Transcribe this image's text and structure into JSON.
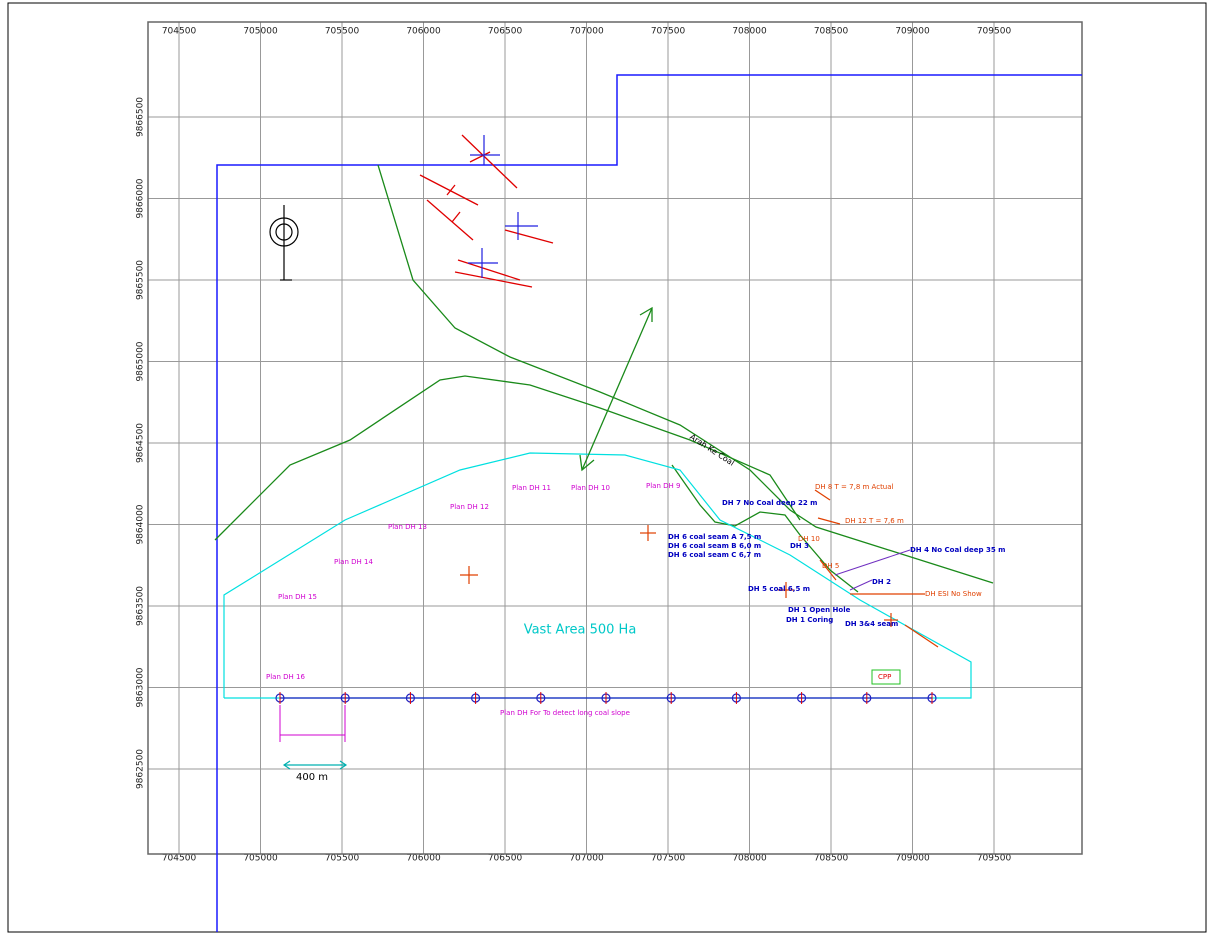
{
  "map": {
    "xticks": [
      704500,
      705000,
      705500,
      706000,
      706500,
      707000,
      707500,
      708000,
      708500,
      709000,
      709500
    ],
    "yticks": [
      9866500,
      9866000,
      9865500,
      9865000,
      9864500,
      9864000,
      9863500,
      9863000,
      9862500
    ],
    "road_label": "Arah Ke Coal",
    "area_label": "Vast Area 500 Ha",
    "scale_label": "400 m",
    "plan_labels": [
      "Plan DH 16",
      "Plan DH 15",
      "Plan DH 14",
      "Plan DH 13",
      "Plan DH 12",
      "Plan DH 11",
      "Plan DH 10",
      "Plan DH 9",
      "Plan DH For To detect long coal slope"
    ],
    "drill_labels": [
      "DH 7 No Coal deep 22 m",
      "DH 6 coal seam A 7,5 m",
      "DH 6 coal seam B 6,0 m",
      "DH 6 coal seam C 6,7 m",
      "DH 5 coal 6,5 m",
      "DH 1 Open Hole",
      "DH 1 Coring",
      "DH 3&4 seam",
      "DH 4 No Coal deep 35 m",
      "DH 2",
      "DH 3"
    ],
    "result_labels": [
      "DH 8 T = 7,8 m Actual",
      "DH 12 T = 7,6 m",
      "DH 10",
      "DH 5",
      "DH ESI No Show"
    ],
    "facility_label": "CPP"
  }
}
